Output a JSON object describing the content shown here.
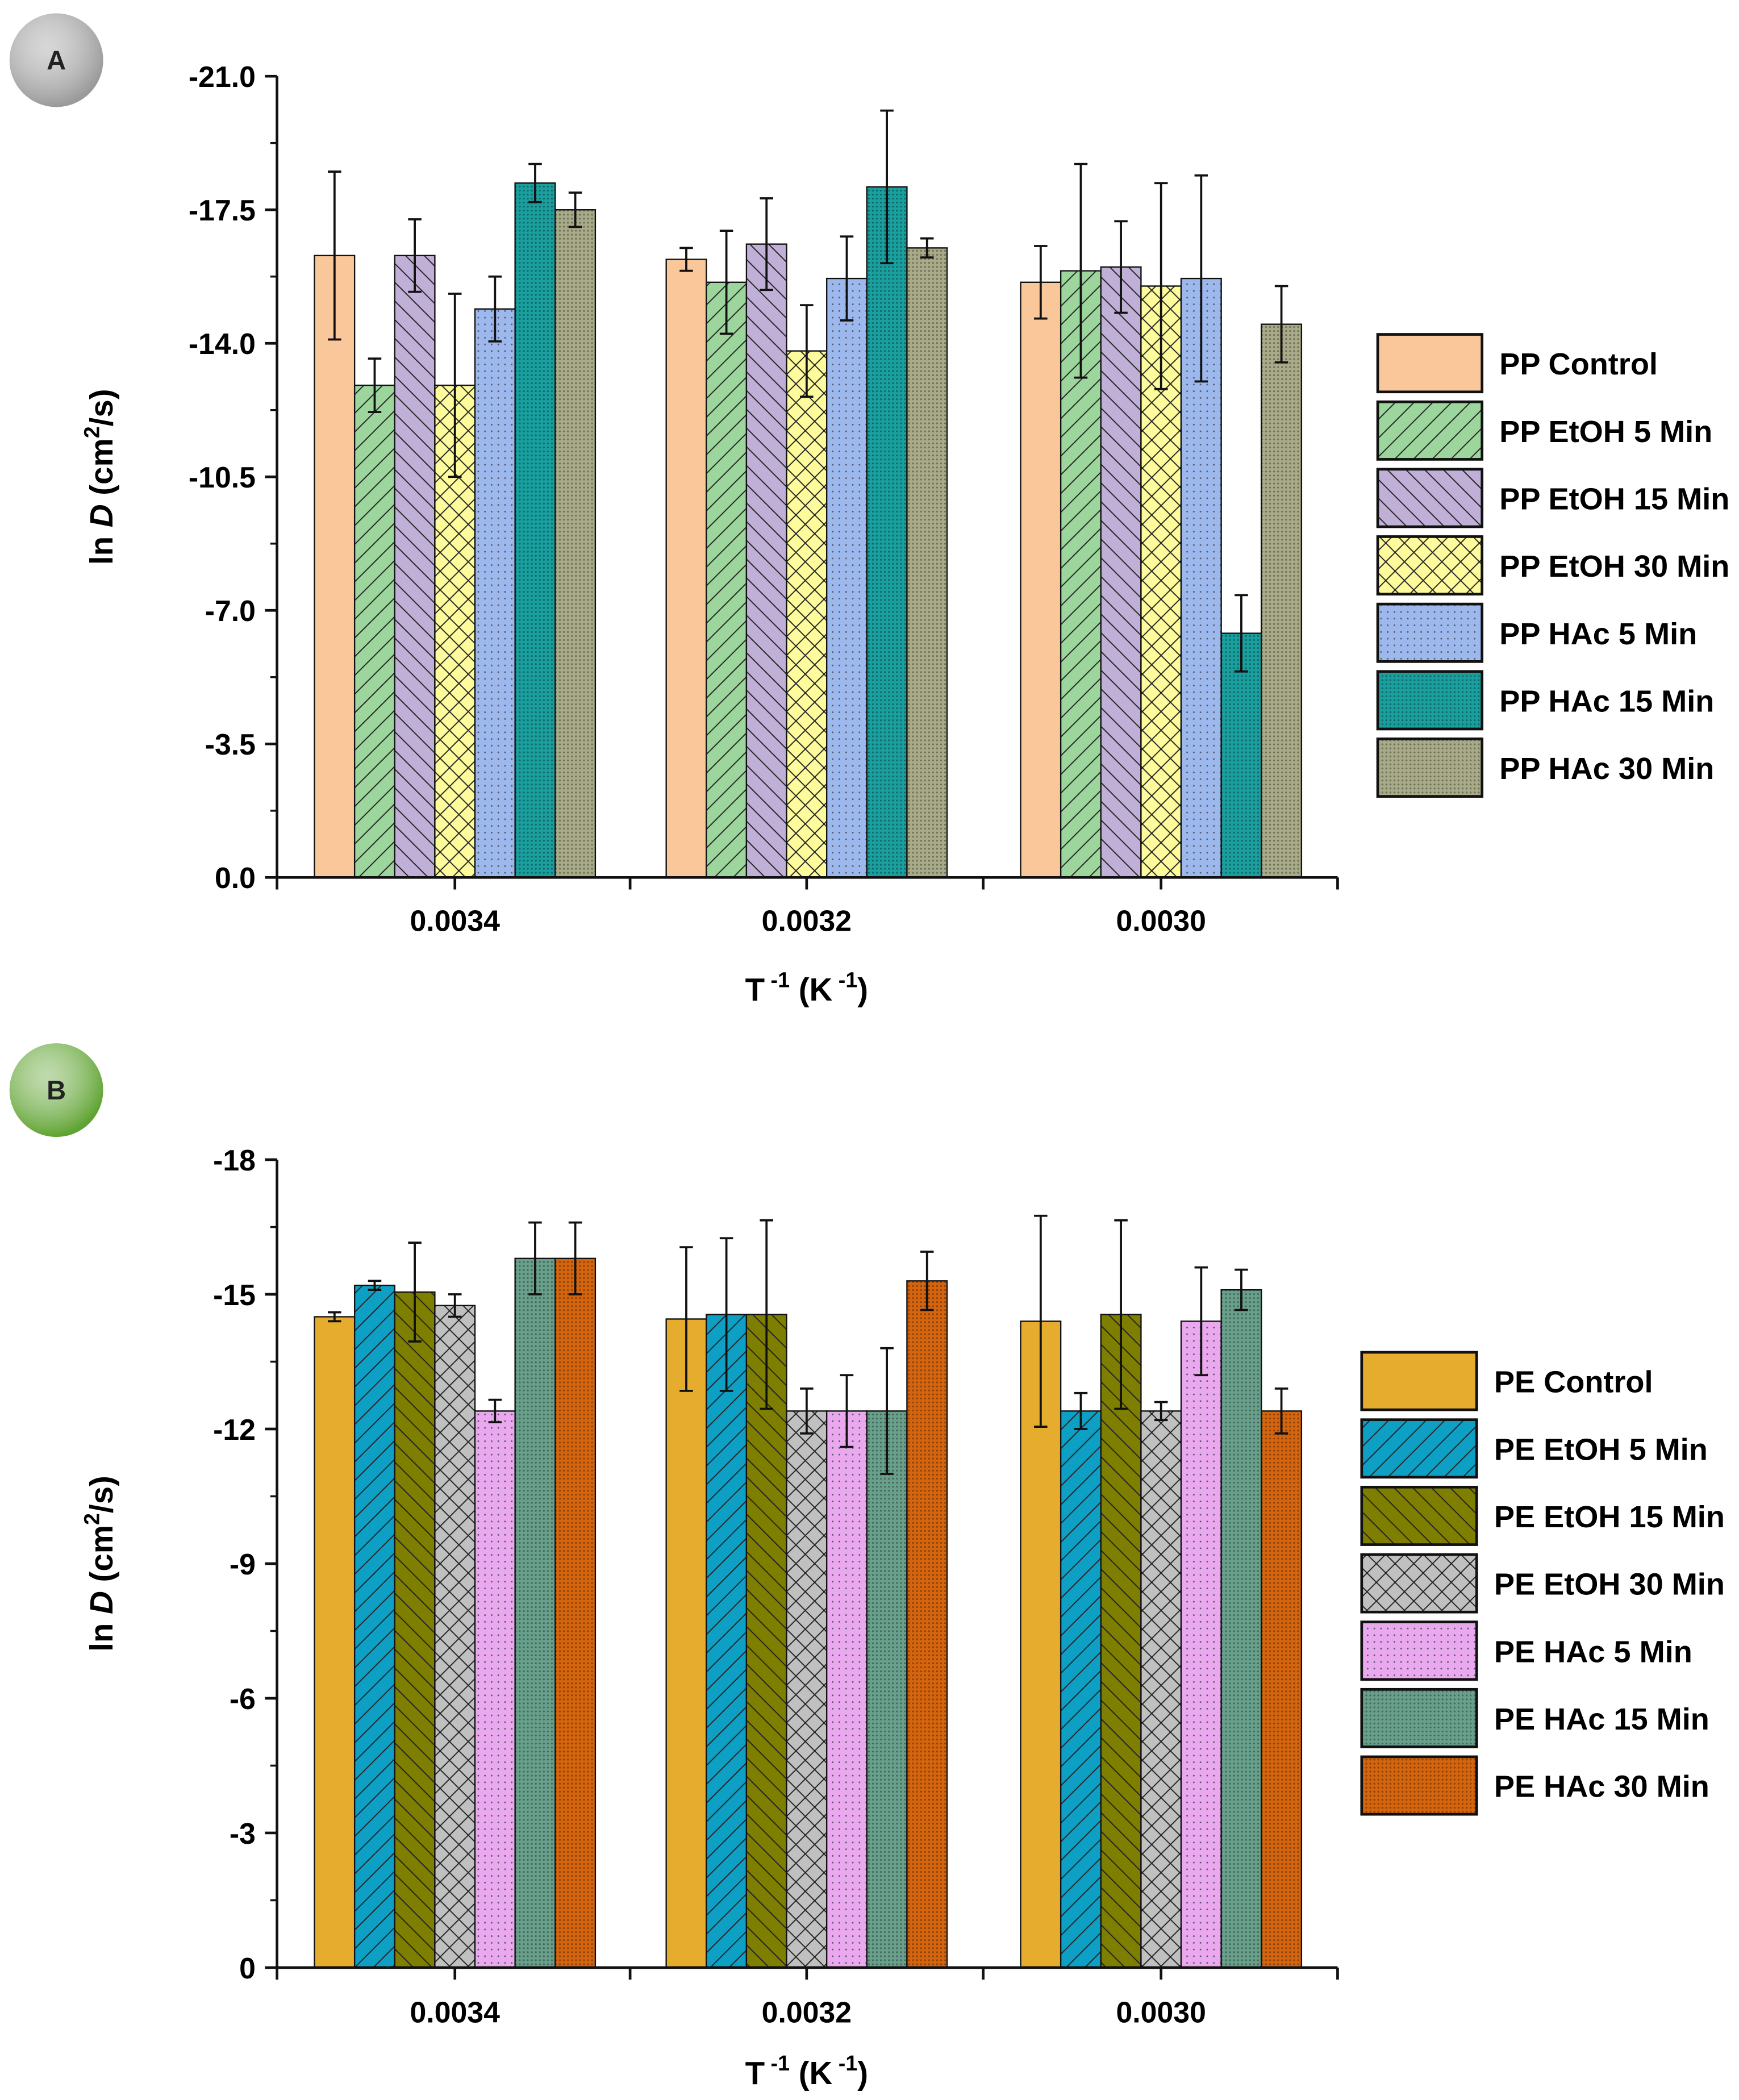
{
  "chart_data": [
    {
      "type": "bar",
      "panel_label": "A",
      "badge_color": "#9a9a9a",
      "xlabel": "T -1 (K -1)",
      "xlabel_parts": {
        "base": "T",
        "exp": "-1",
        "unit_open": "(K",
        "unit_exp": "-1",
        "unit_close": ")"
      },
      "ylabel": "ln D (cm2/s)",
      "ylabel_parts": {
        "pre": "ln ",
        "italic": "D",
        "open": " (cm",
        "exp": "2",
        "close": "/s)"
      },
      "ylim": [
        0,
        -21.0
      ],
      "yticks": [
        "0.0",
        "-3.5",
        "-7.0",
        "-10.5",
        "-14.0",
        "-17.5",
        "-21.0"
      ],
      "ytick_values": [
        0,
        -3.5,
        -7,
        -10.5,
        -14,
        -17.5,
        -21
      ],
      "categories": [
        "0.0034",
        "0.0032",
        "0.0030"
      ],
      "legend_position": "right",
      "series": [
        {
          "name": "PP Control",
          "color": "#f9c79a",
          "pattern": "none",
          "values": [
            -16.3,
            -16.2,
            -15.6
          ],
          "errors": [
            2.2,
            0.3,
            0.95
          ]
        },
        {
          "name": "PP EtOH 5 Min",
          "color": "#9cd69c",
          "pattern": "fwd-diag",
          "values": [
            -12.9,
            -15.6,
            -15.9
          ],
          "errors": [
            0.7,
            1.35,
            2.8
          ]
        },
        {
          "name": "PP EtOH 15 Min",
          "color": "#c0b0d8",
          "pattern": "back-diag",
          "values": [
            -16.3,
            -16.6,
            -16.0
          ],
          "errors": [
            0.95,
            1.2,
            1.2
          ]
        },
        {
          "name": "PP EtOH 30 Min",
          "color": "#fdfb9c",
          "pattern": "cross",
          "values": [
            -12.9,
            -13.8,
            -15.5
          ],
          "errors": [
            2.4,
            1.2,
            2.7
          ]
        },
        {
          "name": "PP HAc 5 Min",
          "color": "#9cb8ec",
          "pattern": "dots",
          "values": [
            -14.9,
            -15.7,
            -15.7
          ],
          "errors": [
            0.85,
            1.1,
            2.7
          ]
        },
        {
          "name": "PP HAc 15 Min",
          "color": "#1a9f9f",
          "pattern": "dense",
          "values": [
            -18.2,
            -18.1,
            -6.4
          ],
          "errors": [
            0.5,
            2.0,
            1.0
          ]
        },
        {
          "name": "PP HAc 30 Min",
          "color": "#a8aa88",
          "pattern": "dense",
          "values": [
            -17.5,
            -16.5,
            -14.5
          ],
          "errors": [
            0.45,
            0.25,
            1.0
          ]
        }
      ]
    },
    {
      "type": "bar",
      "panel_label": "B",
      "badge_color": "#5fa331",
      "xlabel": "T -1 (K -1)",
      "xlabel_parts": {
        "base": "T",
        "exp": "-1",
        "unit_open": "(K",
        "unit_exp": "-1",
        "unit_close": ")"
      },
      "ylabel": "ln D (cm2/s)",
      "ylabel_parts": {
        "pre": "ln ",
        "italic": "D",
        "open": " (cm",
        "exp": "2",
        "close": "/s)"
      },
      "ylim": [
        0,
        -18
      ],
      "yticks": [
        "0",
        "-3",
        "-6",
        "-9",
        "-12",
        "-15",
        "-18"
      ],
      "ytick_values": [
        0,
        -3,
        -6,
        -9,
        -12,
        -15,
        -18
      ],
      "categories": [
        "0.0034",
        "0.0032",
        "0.0030"
      ],
      "legend_position": "right",
      "series": [
        {
          "name": "PE Control",
          "color": "#e6ac2e",
          "pattern": "none",
          "values": [
            -14.5,
            -14.45,
            -14.4
          ],
          "errors": [
            0.1,
            1.6,
            2.35
          ]
        },
        {
          "name": "PE EtOH 5 Min",
          "color": "#0ea0c4",
          "pattern": "fwd-diag",
          "values": [
            -15.2,
            -14.55,
            -12.4
          ],
          "errors": [
            0.1,
            1.7,
            0.4
          ]
        },
        {
          "name": "PE EtOH 15 Min",
          "color": "#7e7e00",
          "pattern": "back-diag",
          "values": [
            -15.05,
            -14.55,
            -14.55
          ],
          "errors": [
            1.1,
            2.1,
            2.1
          ]
        },
        {
          "name": "PE EtOH 30 Min",
          "color": "#c0c0c0",
          "pattern": "cross",
          "values": [
            -14.75,
            -12.4,
            -12.4
          ],
          "errors": [
            0.25,
            0.5,
            0.2
          ]
        },
        {
          "name": "PE HAc 5 Min",
          "color": "#eaa8ee",
          "pattern": "dots",
          "values": [
            -12.4,
            -12.4,
            -14.4
          ],
          "errors": [
            0.25,
            0.8,
            1.2
          ]
        },
        {
          "name": "PE HAc 15 Min",
          "color": "#68a08c",
          "pattern": "dense",
          "values": [
            -15.8,
            -12.4,
            -15.1
          ],
          "errors": [
            0.8,
            1.4,
            0.45
          ]
        },
        {
          "name": "PE HAc 30 Min",
          "color": "#d4650e",
          "pattern": "dense",
          "values": [
            -15.8,
            -15.3,
            -12.4
          ],
          "errors": [
            0.8,
            0.65,
            0.5
          ]
        }
      ]
    }
  ]
}
